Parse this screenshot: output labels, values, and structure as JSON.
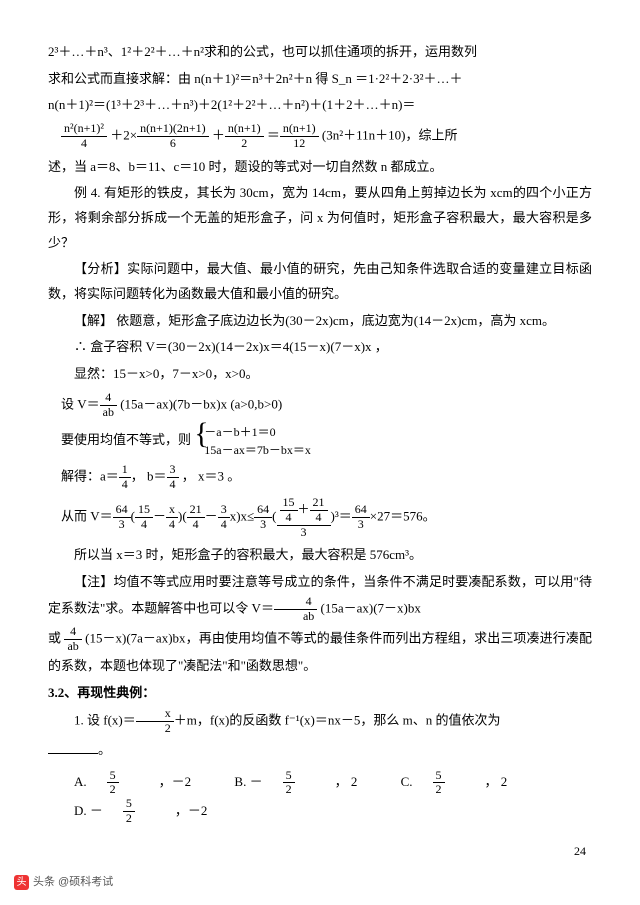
{
  "p1": "2³＋…＋n³、1²＋2²＋…＋n²求和的公式，也可以抓住通项的拆开，运用数列",
  "p2": "求和公式而直接求解：由 n(n＋1)²＝n³＋2n²＋n 得 S_n ＝1·2²＋2·3²＋…＋",
  "p3": "n(n＋1)²＝(1³＋2³＋…＋n³)＋2(1²＋2²＋…＋n²)＋(1＋2＋…＋n)＝",
  "f1_a_n": "n²(n+1)²",
  "f1_a_d": "4",
  "f1_mid": " ＋2×",
  "f1_b_n": "n(n+1)(2n+1)",
  "f1_b_d": "6",
  "f1_p": " ＋",
  "f1_c_n": "n(n+1)",
  "f1_c_d": "2",
  "f1_eq": " ＝",
  "f1_d_n": "n(n+1)",
  "f1_d_d": "12",
  "f1_tail": " (3n²＋11n＋10)，综上所",
  "p5": "述，当 a＝8、b＝11、c＝10 时，题设的等式对一切自然数 n 都成立。",
  "p6": "例 4. 有矩形的铁皮，其长为 30cm，宽为 14cm，要从四角上剪掉边长为 xcm的四个小正方形，将剩余部分拆成一个无盖的矩形盒子，问 x 为何值时，矩形盒子容积最大，最大容积是多少？",
  "p7": "【分析】实际问题中，最大值、最小值的研究，先由己知条件选取合适的变量建立目标函数，将实际问题转化为函数最大值和最小值的研究。",
  "p8": "【解】 依题意，矩形盒子底边边长为(30－2x)cm，底边宽为(14－2x)cm，高为 xcm。",
  "p9": "∴ 盒子容积 V＝(30－2x)(14－2x)x＝4(15－x)(7－x)x   ，",
  "p10": "显然：15－x>0，7－x>0，x>0。",
  "p11a": "设 V＝",
  "p11_n": "4",
  "p11_d": "ab",
  "p11b": " (15a－ax)(7b－bx)x   (a>0,b>0)",
  "p12a": "要使用均值不等式，则",
  "br1": "－a－b＋1＝0",
  "br2": "15a－ax＝7b－bx＝x",
  "p13a": "解得：a＝",
  "f13a_n": "1",
  "f13a_d": "4",
  "p13b": "，  b＝",
  "f13b_n": "3",
  "f13b_d": "4",
  "p13c": " ，  x＝3  。",
  "p14a": "从而 V＝",
  "f14a_n": "64",
  "f14a_d": "3",
  "p14b": "(",
  "f14b_n": "15",
  "f14b_d": "4",
  "p14c": "－",
  "f14c_n": "x",
  "f14c_d": "4",
  "p14d": ")(",
  "f14d_n": "21",
  "f14d_d": "4",
  "p14e": "－",
  "f14e_n": "3",
  "f14e_d": "4",
  "p14f": "x)x≤",
  "f14f_n": "64",
  "f14f_d": "3",
  "p14g": "(",
  "f14g_nn": "15",
  "f14g_n_p": "＋",
  "f14g_nn2": "21",
  "f14g_nd": "4",
  "f14g_nd2": "4",
  "f14g_d": "3",
  "p14h": ")³＝",
  "f14h_n": "64",
  "f14h_d": "3",
  "p14i": "×27＝576。",
  "p15": "所以当 x＝3 时，矩形盒子的容积最大，最大容积是 576cm³。",
  "p16a": "【注】均值不等式应用时要注意等号成立的条件，当条件不满足时要凑配系数，可以用\"待定系数法\"求。本题解答中也可以令 V＝",
  "f16_n": "4",
  "f16_d": "ab",
  "p16b": " (15a－ax)(7－x)bx",
  "p17a": "或 ",
  "f17_n": "4",
  "f17_d": "ab",
  "p17b": " (15－x)(7a－ax)bx，再由使用均值不等式的最佳条件而列出方程组，求出三项凑进行凑配的系数，本题也体现了\"凑配法\"和\"函数思想\"。",
  "p18": "3.2、再现性典例：",
  "p19a": "1. 设 f(x)＝",
  "f19_n": "x",
  "f19_d": "2",
  "p19b": "＋m，f(x)的反函数 f⁻¹(x)＝nx－5，那么 m、n 的值依次为",
  "oa": "A. ",
  "ob": "B. －",
  "oc": "C. ",
  "od": "D. －",
  "o5": "5",
  "o2": "2",
  "om2": "，－2",
  "op2": "，  2",
  "pg": "24",
  "wm": "头条 @硕科考试"
}
